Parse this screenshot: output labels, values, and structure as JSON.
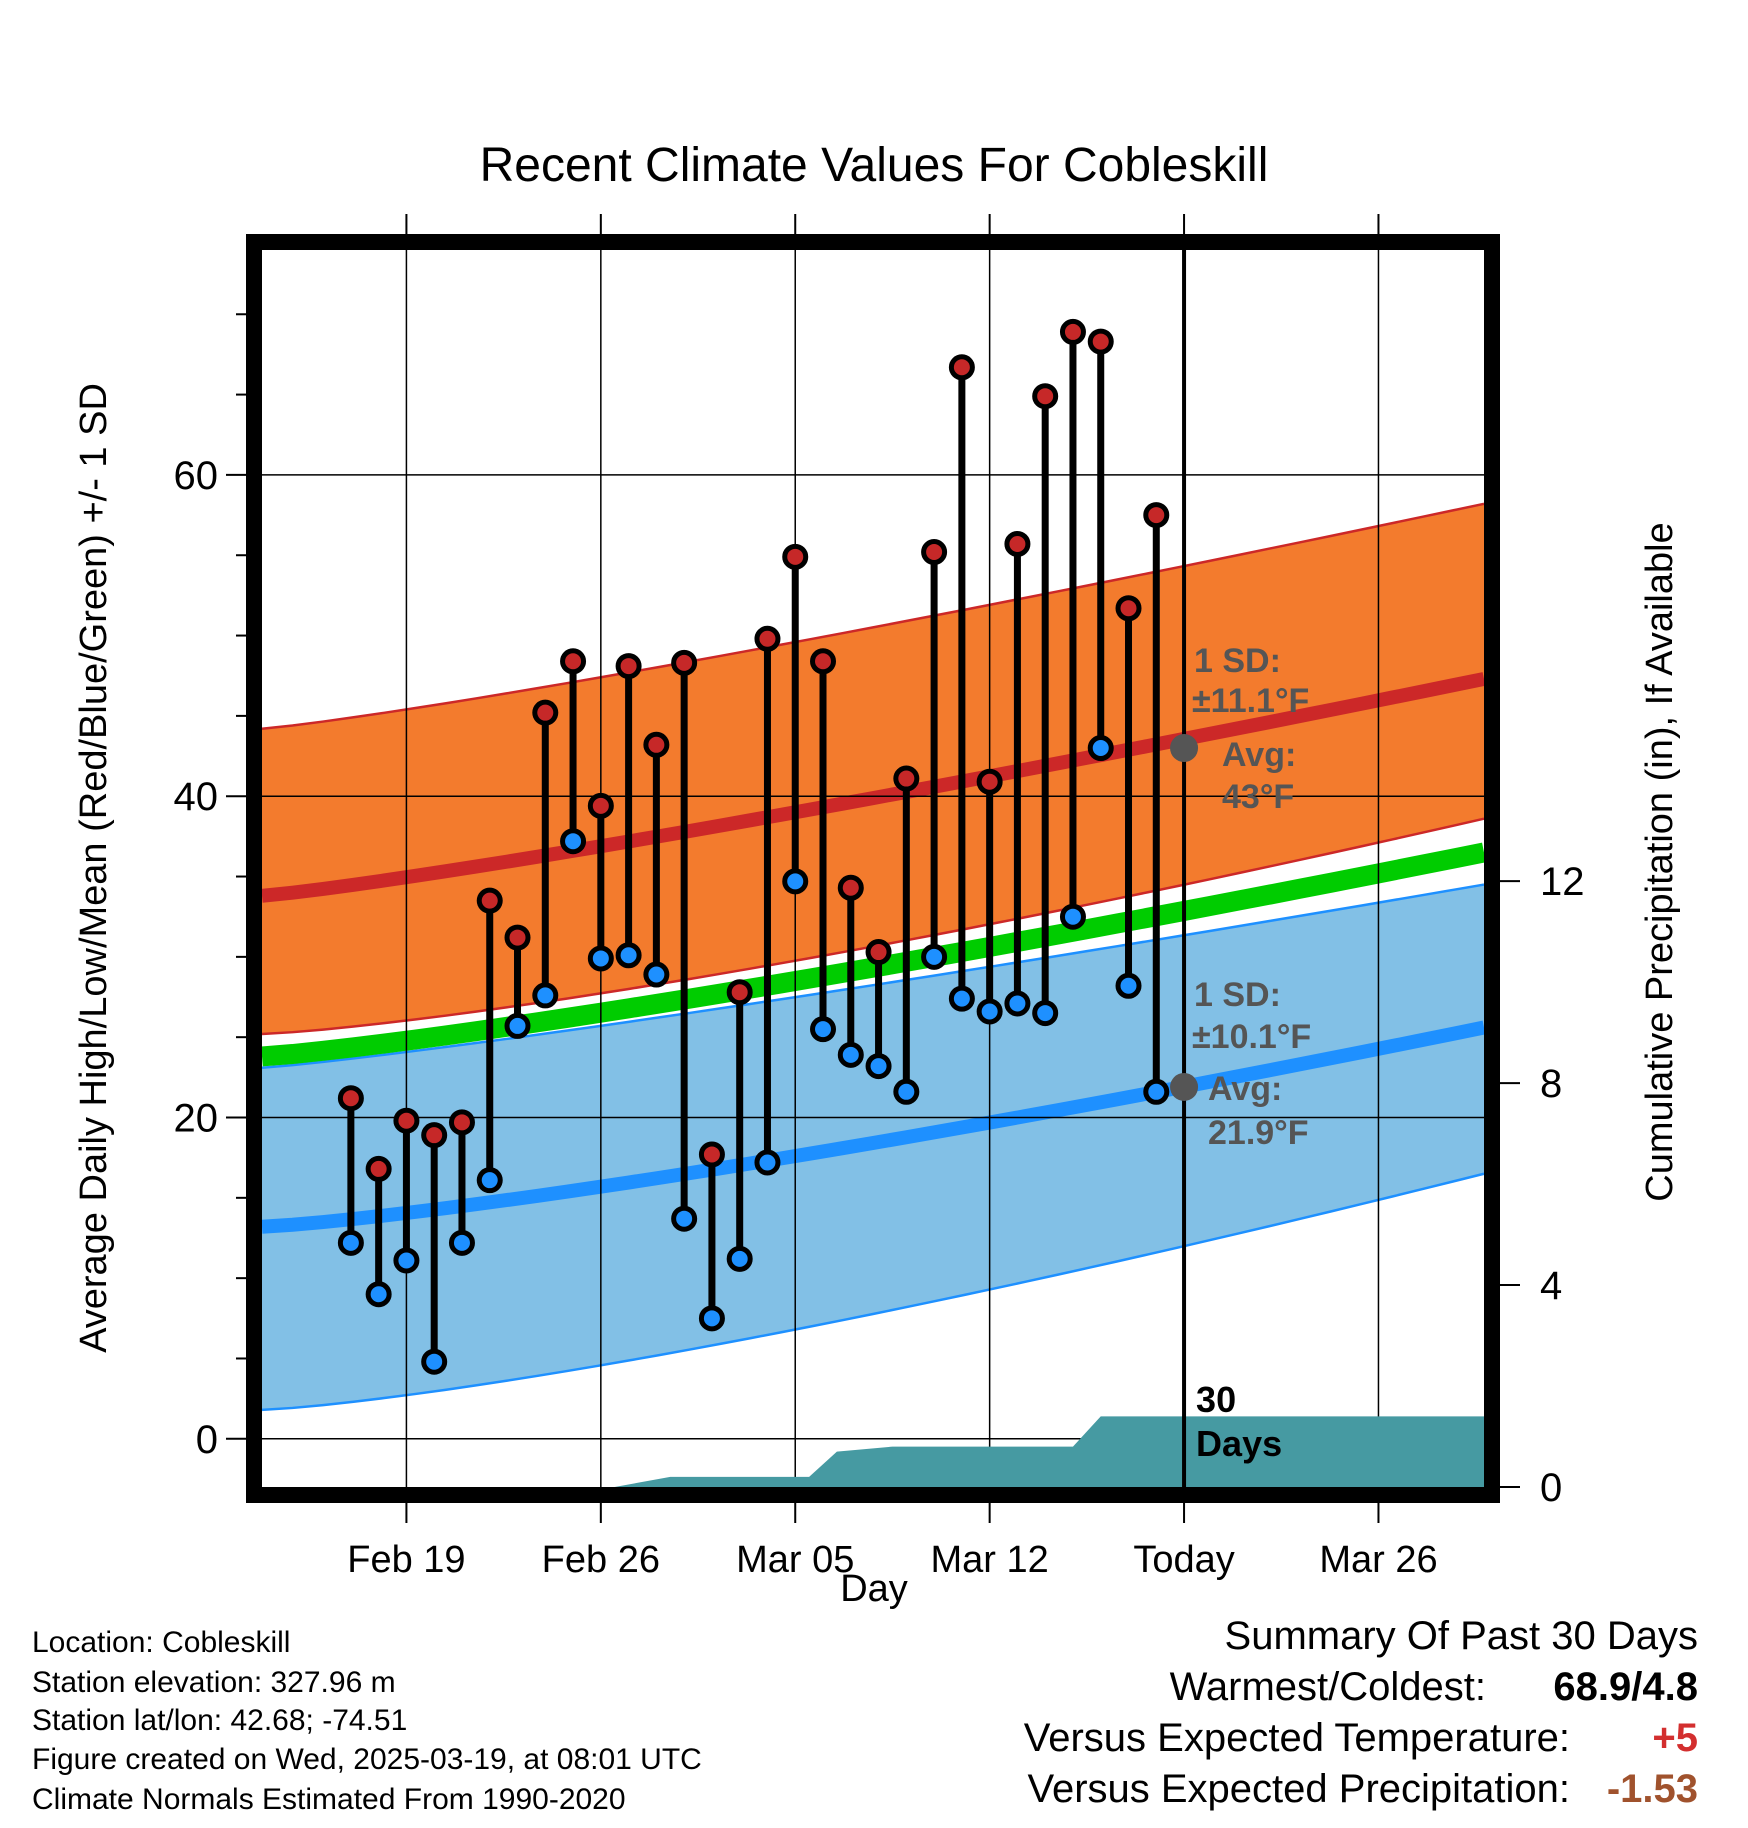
{
  "chart_data": {
    "type": "line",
    "title": "Recent Climate Values For Cobleskill",
    "xlabel": "Day",
    "ylabel": "Average Daily High/Low/Mean (Red/Blue/Green) +/- 1 SD",
    "y2label": "Cumulative Precipitation (in), If Available",
    "x_tick_labels": [
      "Feb 19",
      "Feb 26",
      "Mar 05",
      "Mar 12",
      "Today",
      "Mar 26"
    ],
    "y_ticks": [
      0,
      20,
      40,
      60
    ],
    "y2_ticks": [
      0,
      4,
      8,
      12
    ],
    "ylim": [
      -3,
      74
    ],
    "y2lim": [
      0,
      24.5
    ],
    "x_range_days": [
      -33.2,
      10.8
    ],
    "today_label": "30\nDays",
    "grid": true,
    "normals": {
      "x_days": [
        -33.2,
        10.8
      ],
      "high_mean": [
        33.8,
        47.3
      ],
      "high_sd_upper": [
        44.2,
        58.2
      ],
      "high_sd_lower": [
        25.2,
        38.6
      ],
      "low_mean": [
        13.2,
        25.6
      ],
      "low_sd_upper": [
        23.1,
        34.5
      ],
      "low_sd_lower": [
        1.8,
        16.5
      ],
      "avg_mean": [
        23.8,
        36.5
      ]
    },
    "annotations": {
      "high_sd": "1 SD:",
      "high_sd_value": "±11.1°F",
      "high_avg": "Avg:",
      "high_avg_value": "43°F",
      "low_sd": "1 SD:",
      "low_sd_value": "±10.1°F",
      "low_avg": "Avg:",
      "low_avg_value": "21.9°F",
      "today_high_avg": 43.0,
      "today_low_avg": 21.9
    },
    "series": [
      {
        "name": "High",
        "color": "#c62828",
        "values": [
          21.2,
          16.8,
          19.8,
          18.9,
          19.7,
          33.5,
          31.2,
          45.2,
          48.4,
          39.4,
          48.1,
          43.2,
          48.3,
          17.7,
          27.8,
          49.8,
          54.9,
          48.4,
          34.3,
          30.3,
          41.1,
          55.2,
          66.7,
          40.9,
          55.7,
          64.9,
          68.9,
          68.3,
          51.7,
          57.5
        ]
      },
      {
        "name": "Low",
        "color": "#1e90ff",
        "values": [
          12.2,
          9.0,
          11.1,
          4.8,
          12.2,
          16.1,
          25.7,
          27.6,
          37.2,
          29.9,
          30.1,
          28.9,
          13.7,
          7.5,
          11.2,
          17.2,
          34.7,
          25.5,
          23.9,
          23.2,
          21.6,
          30.0,
          27.4,
          26.6,
          27.1,
          26.5,
          32.5,
          43.0,
          28.2,
          21.6
        ]
      }
    ],
    "days_offset_from_today": [
      -30,
      -29,
      -28,
      -27,
      -26,
      -25,
      -24,
      -23,
      -22,
      -21,
      -20,
      -19,
      -18,
      -17,
      -16,
      -15,
      -14,
      -13,
      -12,
      -11,
      -10,
      -9,
      -8,
      -7,
      -6,
      -5,
      -4,
      -3,
      -2,
      -1
    ],
    "low_dot_colors": [
      "#1e90ff",
      "#1e90ff",
      "#1e90ff",
      "#1e90ff",
      "#1e90ff",
      "#1e90ff",
      "#1e90ff",
      "#1e90ff",
      "#1e90ff",
      "#1e90ff",
      "#1e90ff",
      "#1e90ff",
      "#1e90ff",
      "#1e90ff",
      "#1e90ff",
      "#1e90ff",
      "#1e90ff",
      "#1e90ff",
      "#1e90ff",
      "#1e90ff",
      "#1e90ff",
      "#1e90ff",
      "#1e90ff",
      "#1e90ff",
      "#1e90ff",
      "#1e90ff",
      "#1e90ff",
      "#1e90ff",
      "#1e90ff",
      "#1e90ff"
    ],
    "precip_cumulative": {
      "x_days": [
        -20.5,
        -18.5,
        -13.5,
        -12.5,
        -10.5,
        -4.0,
        -3.0,
        10.8
      ],
      "values": [
        0.0,
        0.2,
        0.2,
        0.7,
        0.8,
        0.8,
        1.4,
        1.4
      ]
    },
    "colors": {
      "high_band": "#f37b2d",
      "high_line": "#cc2828",
      "low_band": "#82c0e6",
      "low_line": "#1e90ff",
      "mean_line": "#00cc00",
      "precip_fill": "#469aa2",
      "avg_marker": "#555555"
    }
  },
  "metadata_panel": {
    "lines": [
      "Location: Cobleskill",
      "Station elevation: 327.96 m",
      "Station lat/lon: 42.68; -74.51",
      "Figure created on Wed, 2025-03-19, at 08:01 UTC",
      "Climate Normals Estimated From 1990-2020"
    ]
  },
  "summary": {
    "title": "Summary Of Past 30 Days",
    "warm_cold_label": "Warmest/Coldest:",
    "warm_cold_value": "68.9/4.8",
    "temp_label": "Versus Expected Temperature:",
    "temp_value": "+5",
    "temp_color": "#d32f2f",
    "precip_label": "Versus Expected Precipitation:",
    "precip_value": "-1.53",
    "precip_color": "#a0522d"
  }
}
